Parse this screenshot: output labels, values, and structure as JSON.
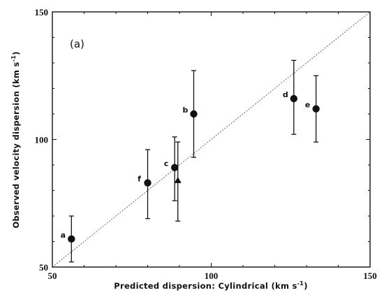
{
  "chart_data": {
    "type": "scatter",
    "panel_label": "(a)",
    "xlabel": "Predicted dispersion: Cylindrical (km s",
    "xlabel_sup": "-1",
    "xlabel_end": ")",
    "ylabel": "Observed velocity dispersion  (km s",
    "ylabel_sup": "-1",
    "ylabel_end": ")",
    "xlim": [
      50,
      150
    ],
    "ylim": [
      50,
      150
    ],
    "xticks": [
      50,
      100,
      150
    ],
    "yticks": [
      50,
      100,
      150
    ],
    "reference_line": {
      "type": "identity",
      "style": "dotted",
      "from": [
        50,
        50
      ],
      "to": [
        150,
        150
      ]
    },
    "points": [
      {
        "label": "a",
        "x": 56,
        "y": 61,
        "y_low": 52,
        "y_high": 70,
        "marker": "circle"
      },
      {
        "label": "f",
        "x": 80,
        "y": 83,
        "y_low": 69,
        "y_high": 96,
        "marker": "circle"
      },
      {
        "label": "c",
        "x": 88.5,
        "y": 89,
        "y_low": 76,
        "y_high": 101,
        "marker": "circle"
      },
      {
        "label": "",
        "x": 89.5,
        "y": 84,
        "y_low": 68,
        "y_high": 99,
        "marker": "triangle"
      },
      {
        "label": "b",
        "x": 94.5,
        "y": 110,
        "y_low": 93,
        "y_high": 127,
        "marker": "circle"
      },
      {
        "label": "d",
        "x": 126,
        "y": 116,
        "y_low": 102,
        "y_high": 131,
        "marker": "circle"
      },
      {
        "label": "e",
        "x": 133,
        "y": 112,
        "y_low": 99,
        "y_high": 125,
        "marker": "circle"
      }
    ]
  }
}
